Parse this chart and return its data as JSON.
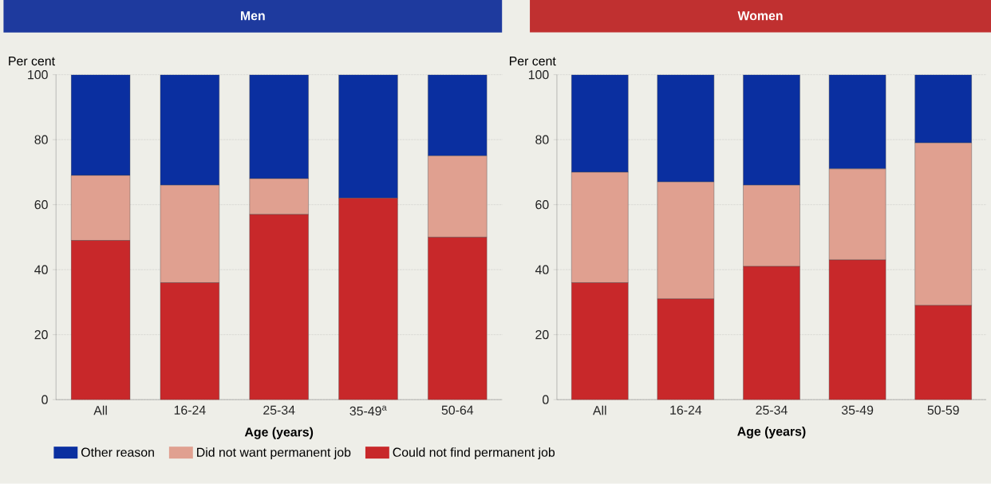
{
  "chart_data": [
    {
      "type": "bar",
      "title": "Men",
      "ylabel": "Per cent",
      "xlabel": "Age (years)",
      "stacked": true,
      "categories": [
        "All",
        "16-24",
        "25-34",
        "35-49$^{a}$",
        "50-64"
      ],
      "ylim": [
        0,
        100
      ],
      "yticks": [
        0,
        20,
        40,
        60,
        80,
        100
      ],
      "grid": "y",
      "legend": "bottom",
      "series": [
        {
          "name": "Could not find permanent job",
          "color": "#c8282a",
          "values": [
            49,
            36,
            57,
            62,
            50
          ]
        },
        {
          "name": "Did not want permanent job",
          "color": "#e0a090",
          "values": [
            20,
            30,
            11,
            null,
            25
          ]
        },
        {
          "name": "Other reason",
          "color": "#0a2fa0",
          "values": [
            31,
            34,
            32,
            38,
            25
          ]
        }
      ]
    },
    {
      "type": "bar",
      "title": "Women",
      "ylabel": "Per cent",
      "xlabel": "Age (years)",
      "stacked": true,
      "categories": [
        "All",
        "16-24",
        "25-34",
        "35-49",
        "50-59"
      ],
      "ylim": [
        0,
        100
      ],
      "yticks": [
        0,
        20,
        40,
        60,
        80,
        100
      ],
      "grid": "y",
      "series": [
        {
          "color": "#c8282a",
          "values": [
            36,
            31,
            41,
            43,
            29
          ]
        },
        {
          "color": "#e0a090",
          "values": [
            34,
            36,
            25,
            28,
            50
          ]
        },
        {
          "color": "#0a2fa0",
          "values": [
            30,
            33,
            34,
            29,
            21
          ]
        }
      ]
    }
  ]
}
